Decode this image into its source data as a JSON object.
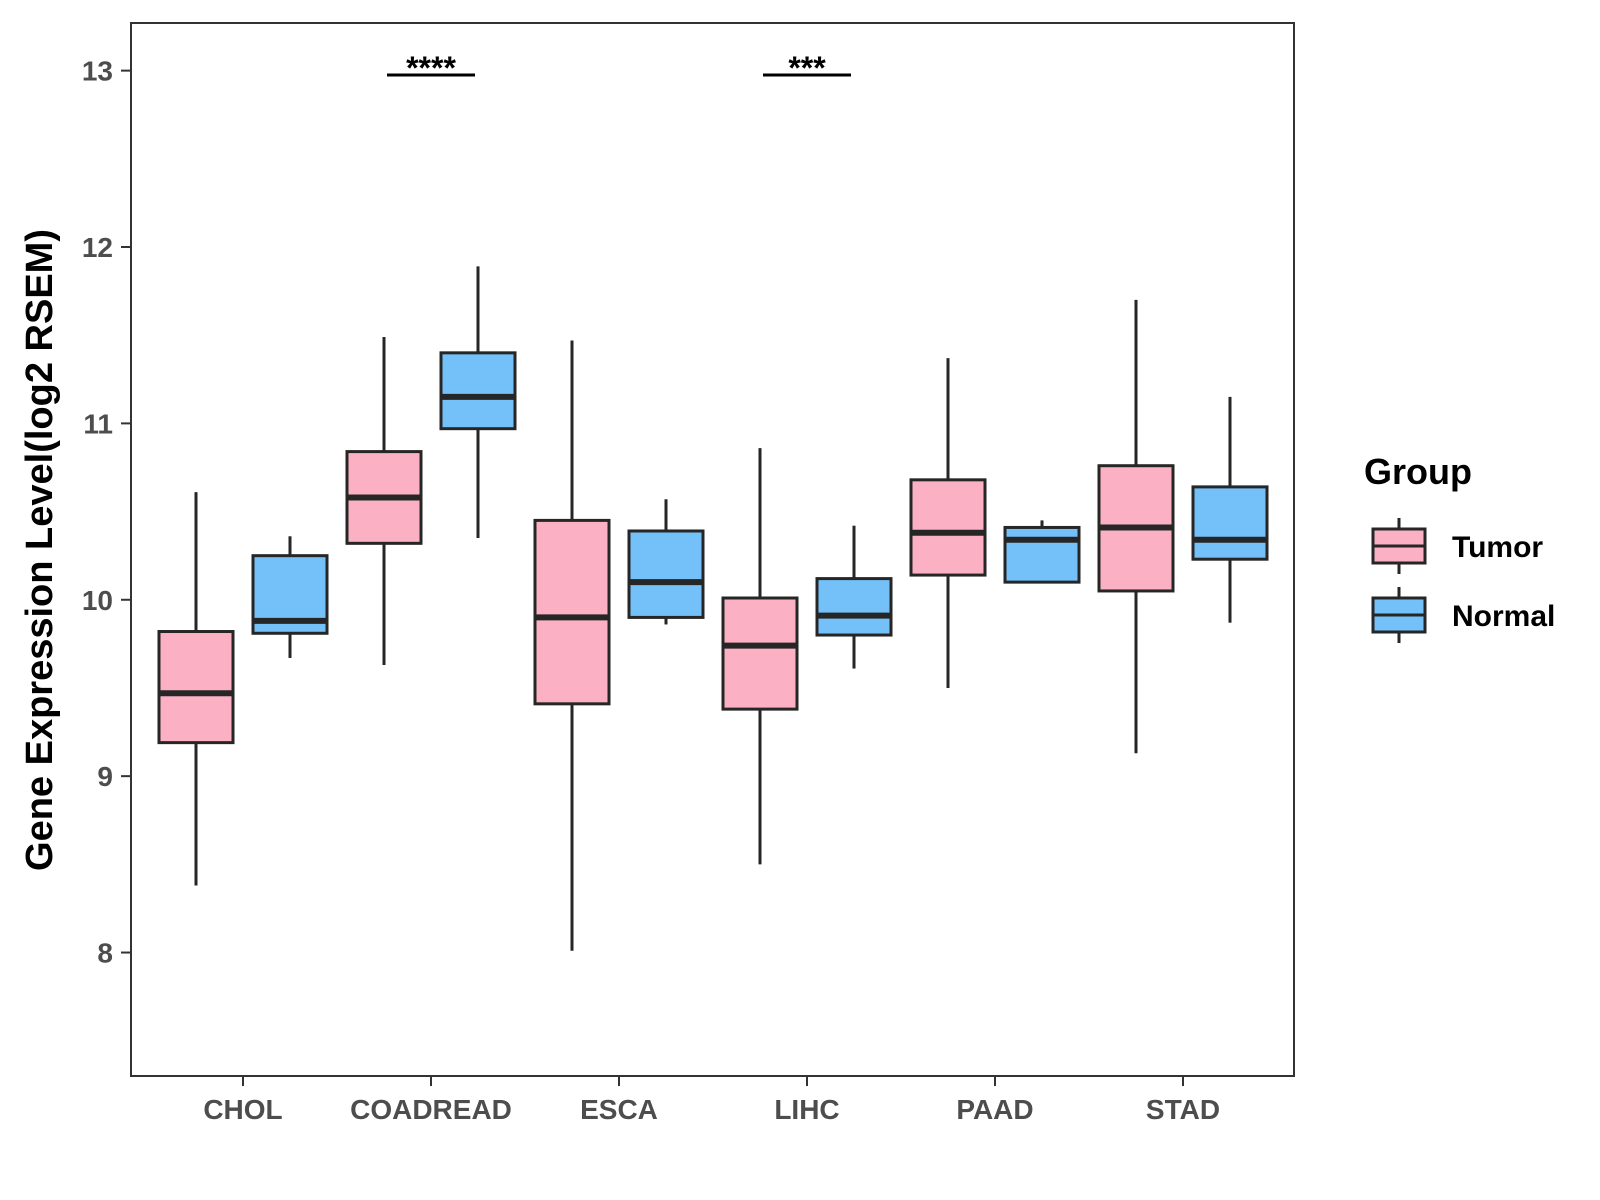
{
  "chart_data": {
    "type": "boxplot",
    "title": "",
    "xlabel": "",
    "ylabel": "Gene Expression Level(log2 RSEM)",
    "ylim": [
      7.3,
      13.27
    ],
    "yticks": [
      8,
      9,
      10,
      11,
      12,
      13
    ],
    "grid": false,
    "legend": {
      "title": "Group",
      "position": "right",
      "entries": [
        {
          "name": "Tumor",
          "color": "#fbb1c3"
        },
        {
          "name": "Normal",
          "color": "#74c0f8"
        }
      ]
    },
    "categories": [
      "CHOL",
      "COADREAD",
      "ESCA",
      "LIHC",
      "PAAD",
      "STAD"
    ],
    "series": [
      {
        "name": "Tumor",
        "color": "#fbb1c3",
        "boxes": [
          {
            "whisker_low": 8.38,
            "q1": 9.19,
            "median": 9.47,
            "q3": 9.82,
            "whisker_high": 10.61
          },
          {
            "whisker_low": 9.63,
            "q1": 10.32,
            "median": 10.58,
            "q3": 10.84,
            "whisker_high": 11.49
          },
          {
            "whisker_low": 8.01,
            "q1": 9.41,
            "median": 9.9,
            "q3": 10.45,
            "whisker_high": 11.47
          },
          {
            "whisker_low": 8.5,
            "q1": 9.38,
            "median": 9.74,
            "q3": 10.01,
            "whisker_high": 10.86
          },
          {
            "whisker_low": 9.5,
            "q1": 10.14,
            "median": 10.38,
            "q3": 10.68,
            "whisker_high": 11.37
          },
          {
            "whisker_low": 9.13,
            "q1": 10.05,
            "median": 10.41,
            "q3": 10.76,
            "whisker_high": 11.7
          }
        ]
      },
      {
        "name": "Normal",
        "color": "#74c0f8",
        "boxes": [
          {
            "whisker_low": 9.67,
            "q1": 9.81,
            "median": 9.88,
            "q3": 10.25,
            "whisker_high": 10.36
          },
          {
            "whisker_low": 10.35,
            "q1": 10.97,
            "median": 11.15,
            "q3": 11.4,
            "whisker_high": 11.89
          },
          {
            "whisker_low": 9.86,
            "q1": 9.9,
            "median": 10.1,
            "q3": 10.39,
            "whisker_high": 10.57
          },
          {
            "whisker_low": 9.61,
            "q1": 9.8,
            "median": 9.91,
            "q3": 10.12,
            "whisker_high": 10.42
          },
          {
            "whisker_low": 10.1,
            "q1": 10.1,
            "median": 10.34,
            "q3": 10.41,
            "whisker_high": 10.45
          },
          {
            "whisker_low": 9.87,
            "q1": 10.23,
            "median": 10.34,
            "q3": 10.64,
            "whisker_high": 11.15
          }
        ]
      }
    ],
    "annotations": [
      {
        "category": "COADREAD",
        "label": "****"
      },
      {
        "category": "LIHC",
        "label": "***"
      }
    ]
  }
}
